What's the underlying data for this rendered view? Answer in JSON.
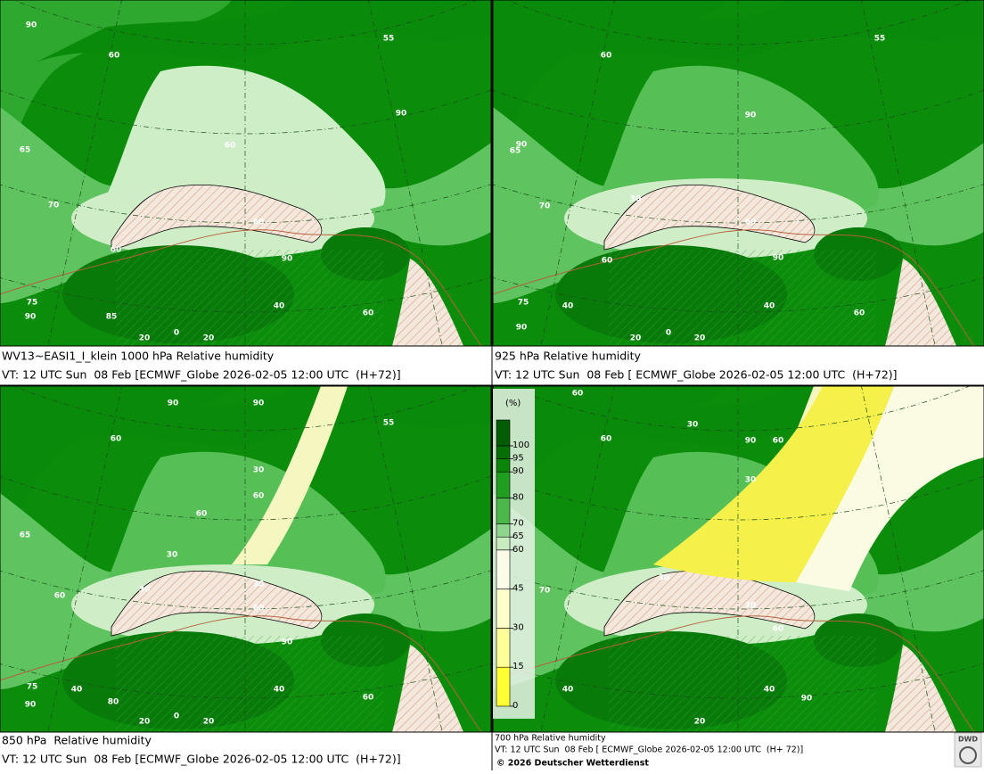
{
  "panels": [
    {
      "caption": "WV13~EASI1_I_klein 1000 hPa Relative humidity",
      "valid_time": "VT: 12 UTC Sun  08 Feb [ECMWF_Globe 2026-02-05 12:00 UTC  (H+72)]",
      "contour_labels": [
        "90",
        "60",
        "55",
        "90",
        "60",
        "65",
        "70",
        "60",
        "60",
        "90",
        "40",
        "75",
        "90",
        "60",
        "20",
        "0",
        "20",
        "85"
      ]
    },
    {
      "caption": "925 hPa Relative humidity",
      "valid_time": "VT: 12 UTC Sun  08 Feb [ ECMWF_Globe 2026-02-05 12:00 UTC  (H+72)]",
      "contour_labels": [
        "60",
        "55",
        "90",
        "90",
        "65",
        "70",
        "30",
        "60",
        "60",
        "90",
        "40",
        "75",
        "90",
        "40",
        "60",
        "20",
        "0",
        "20"
      ]
    },
    {
      "caption": "850 hPa  Relative humidity",
      "valid_time": "VT: 12 UTC Sun  08 Feb [ECMWF_Globe 2026-02-05 12:00 UTC  (H+72)]",
      "contour_labels": [
        "90",
        "90",
        "60",
        "55",
        "30",
        "60",
        "60",
        "65",
        "30",
        "60",
        "30",
        "30",
        "60",
        "90",
        "75",
        "40",
        "90",
        "40",
        "60",
        "80",
        "20",
        "0",
        "20"
      ]
    },
    {
      "caption": "700 hPa Relative humidity",
      "valid_time": "VT: 12 UTC Sun  08 Feb [ ECMWF_Globe 2026-02-05 12:00 UTC  (H+ 72)]",
      "contour_labels": [
        "60",
        "30",
        "60",
        "90",
        "60",
        "30",
        "70",
        "30",
        "30",
        "60",
        "40",
        "40",
        "90",
        "20"
      ]
    }
  ],
  "legend": {
    "title": "(%)",
    "levels": [
      0,
      15,
      30,
      45,
      60,
      65,
      70,
      80,
      90,
      95,
      100
    ],
    "colors": [
      "#ffff33",
      "#ffff99",
      "#ffffcc",
      "#fbfbea",
      "#c8ecc0",
      "#8fd48f",
      "#4cb84c",
      "#1f9e1f",
      "#0a850a",
      "#056e05"
    ]
  },
  "copyright": "© 2026 Deutscher Wetterdienst",
  "logo": "DWD"
}
